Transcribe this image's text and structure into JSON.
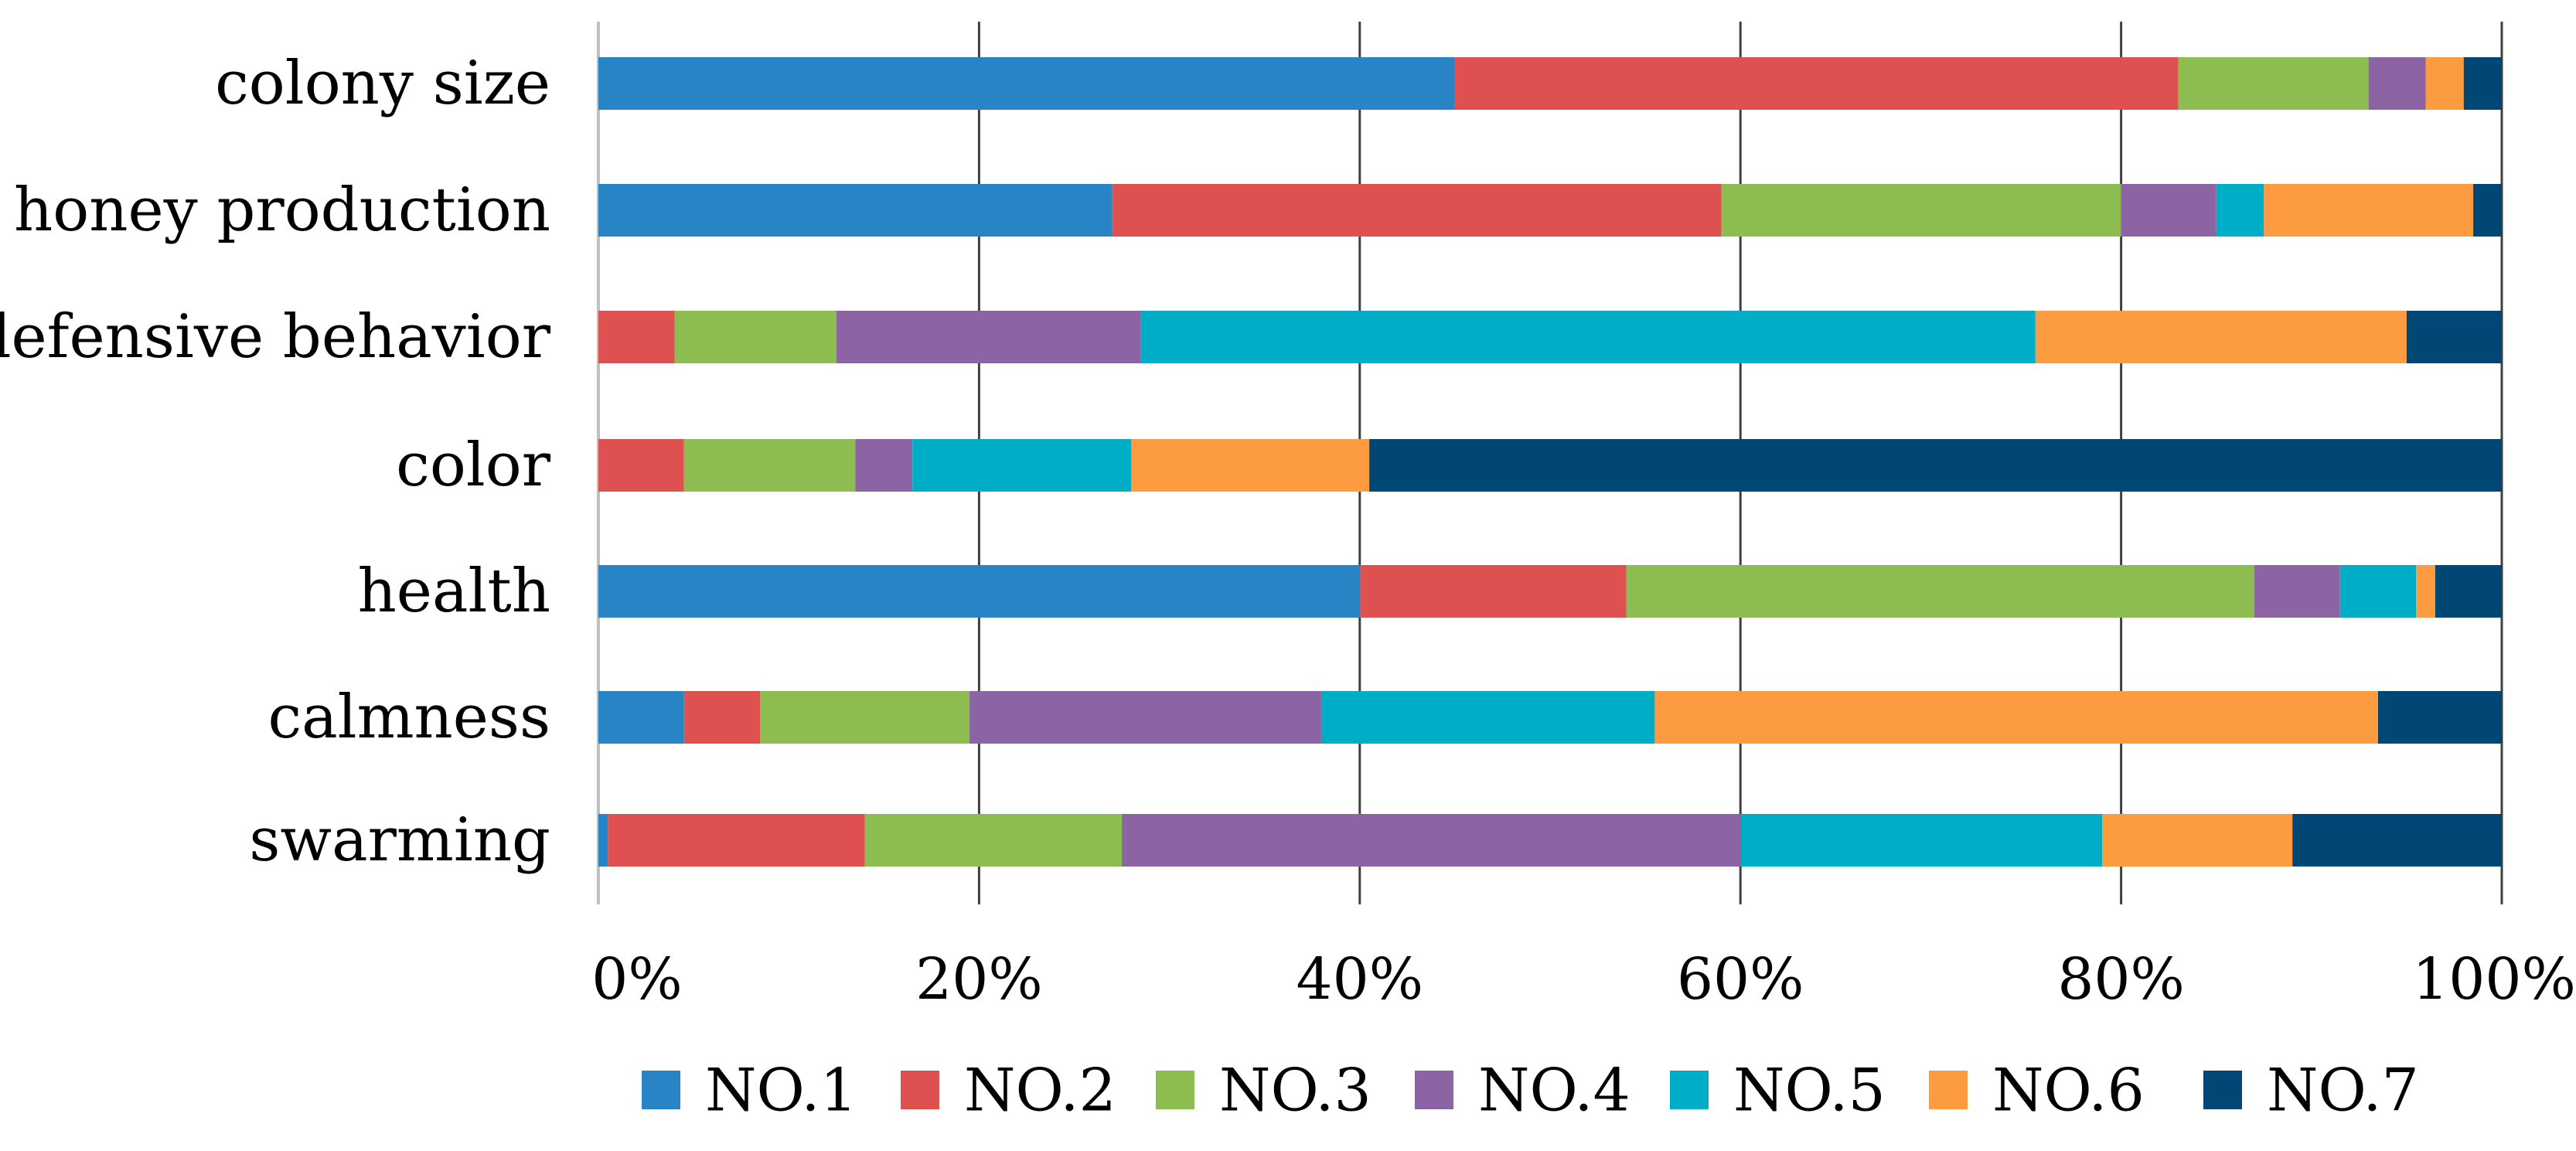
{
  "chart_data": {
    "type": "bar",
    "orientation": "horizontal",
    "stacked": "percent",
    "categories": [
      "colony size",
      "honey production",
      "defensive behavior",
      "color",
      "health",
      "calmness",
      "swarming"
    ],
    "series": [
      {
        "name": "NO.1",
        "color": "#2884c4",
        "values": [
          45,
          27,
          0,
          0,
          40,
          4.5,
          0.5
        ]
      },
      {
        "name": "NO.2",
        "color": "#df5150",
        "values": [
          38,
          32,
          4,
          4.5,
          14,
          4,
          13.5
        ]
      },
      {
        "name": "NO.3",
        "color": "#8dbc50",
        "values": [
          10,
          21,
          8.5,
          9,
          33,
          11,
          13.5
        ]
      },
      {
        "name": "NO.4",
        "color": "#8c63a3",
        "values": [
          3,
          5,
          16,
          3,
          4.5,
          18.5,
          32.5
        ]
      },
      {
        "name": "NO.5",
        "color": "#00adc7",
        "values": [
          0,
          2.5,
          47,
          11.5,
          4,
          17.5,
          19
        ]
      },
      {
        "name": "NO.6",
        "color": "#fd9b40",
        "values": [
          2,
          11,
          19.5,
          12.5,
          1,
          38,
          10
        ]
      },
      {
        "name": "NO.7",
        "color": "#004776",
        "values": [
          2,
          1.5,
          5,
          59.5,
          3.5,
          6.5,
          11
        ]
      }
    ],
    "x_ticks": [
      "0%",
      "20%",
      "40%",
      "60%",
      "80%",
      "100%"
    ],
    "xlim": [
      0,
      100
    ],
    "grid": true,
    "legend_position": "bottom",
    "title": "",
    "xlabel": "",
    "ylabel": ""
  }
}
